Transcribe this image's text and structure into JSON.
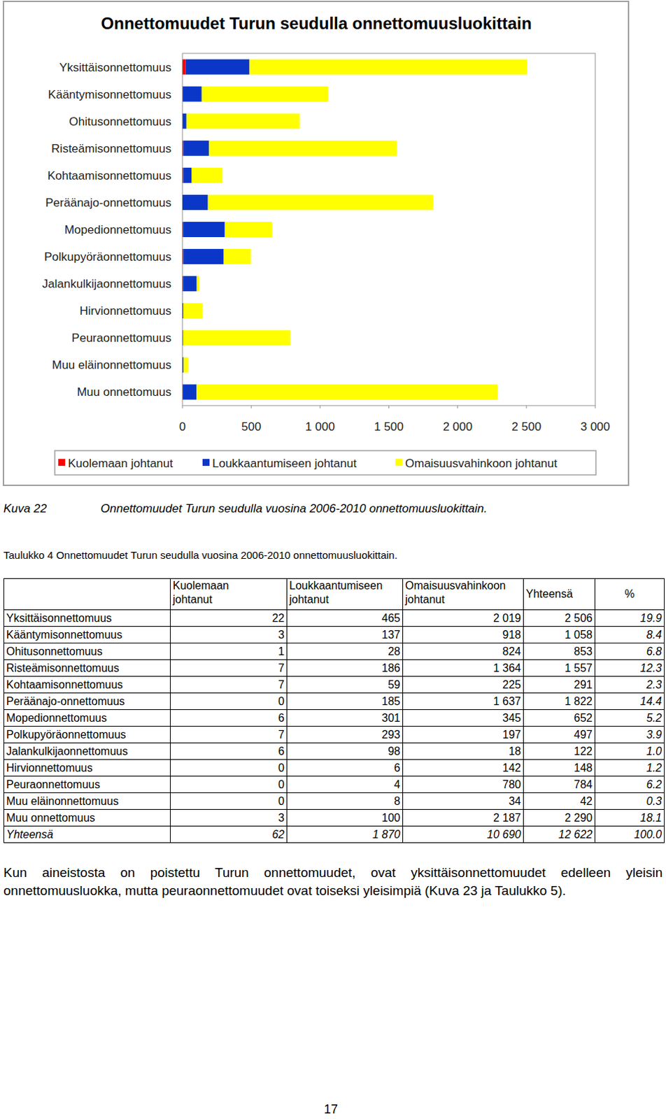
{
  "chart_data": {
    "type": "bar",
    "orientation": "horizontal",
    "stacked": true,
    "title": "Onnettomuudet Turun seudulla onnettomuusluokittain",
    "categories": [
      "Yksittäisonnettomuus",
      "Kääntymisonnettomuus",
      "Ohitusonnettomuus",
      "Risteämisonnettomuus",
      "Kohtaamisonnettomuus",
      "Peräänajo-onnettomuus",
      "Mopedionnettomuus",
      "Polkupyöräonnettomuus",
      "Jalankulkijaonnettomuus",
      "Hirvionnettomuus",
      "Peuraonnettomuus",
      "Muu eläinonnettomuus",
      "Muu onnettomuus"
    ],
    "series": [
      {
        "name": "Kuolemaan johtanut",
        "color": "#ff0000",
        "values": [
          22,
          3,
          1,
          7,
          7,
          0,
          6,
          7,
          6,
          0,
          0,
          0,
          3
        ]
      },
      {
        "name": "Loukkaantumiseen johtanut",
        "color": "#0a37c8",
        "values": [
          465,
          137,
          28,
          186,
          59,
          185,
          301,
          293,
          98,
          6,
          4,
          8,
          100
        ]
      },
      {
        "name": "Omaisuusvahinkoon johtanut",
        "color": "#ffff00",
        "values": [
          2019,
          918,
          824,
          1364,
          225,
          1637,
          345,
          197,
          18,
          142,
          780,
          34,
          2187
        ]
      }
    ],
    "xlim": [
      0,
      3000
    ],
    "xticks": [
      0,
      500,
      {
        "value": 1000,
        "label": "1 000"
      },
      {
        "value": 1500,
        "label": "1 500"
      },
      {
        "value": 2000,
        "label": "2 000"
      },
      {
        "value": 2500,
        "label": "2 500"
      },
      {
        "value": 3000,
        "label": "3 000"
      }
    ],
    "grid": false,
    "legend": "bottom"
  },
  "figure_caption": {
    "label": "Kuva 22",
    "text": "Onnettomuudet Turun seudulla vuosina 2006-2010 onnettomuusluokittain."
  },
  "table": {
    "caption": "Taulukko 4 Onnettomuudet Turun seudulla vuosina 2006-2010 onnettomuusluokittain.",
    "header": [
      "Kuolemaan johtanut",
      "Loukkaantumiseen johtanut",
      "Omaisuusvahinkoon johtanut",
      "Yhteensä",
      "%"
    ],
    "rows": [
      [
        "Yksittäisonnettomuus",
        "22",
        "465",
        "2 019",
        "2 506",
        "19.9"
      ],
      [
        "Kääntymisonnettomuus",
        "3",
        "137",
        "918",
        "1 058",
        "8.4"
      ],
      [
        "Ohitusonnettomuus",
        "1",
        "28",
        "824",
        "853",
        "6.8"
      ],
      [
        "Risteämisonnettomuus",
        "7",
        "186",
        "1 364",
        "1 557",
        "12.3"
      ],
      [
        "Kohtaamisonnettomuus",
        "7",
        "59",
        "225",
        "291",
        "2.3"
      ],
      [
        "Peräänajo-onnettomuus",
        "0",
        "185",
        "1 637",
        "1 822",
        "14.4"
      ],
      [
        "Mopedionnettomuus",
        "6",
        "301",
        "345",
        "652",
        "5.2"
      ],
      [
        "Polkupyöräonnettomuus",
        "7",
        "293",
        "197",
        "497",
        "3.9"
      ],
      [
        "Jalankulkijaonnettomuus",
        "6",
        "98",
        "18",
        "122",
        "1.0"
      ],
      [
        "Hirvionnettomuus",
        "0",
        "6",
        "142",
        "148",
        "1.2"
      ],
      [
        "Peuraonnettomuus",
        "0",
        "4",
        "780",
        "784",
        "6.2"
      ],
      [
        "Muu eläinonnettomuus",
        "0",
        "8",
        "34",
        "42",
        "0.3"
      ],
      [
        "Muu onnettomuus",
        "3",
        "100",
        "2 187",
        "2 290",
        "18.1"
      ],
      [
        "Yhteensä",
        "62",
        "1 870",
        "10 690",
        "12 622",
        "100.0"
      ]
    ]
  },
  "paragraph": "Kun aineistosta on poistettu Turun onnettomuudet, ovat yksittäisonnettomuudet edelleen yleisin onnettomuusluokka, mutta peuraonnettomuudet ovat toiseksi yleisimpiä (Kuva 23 ja Taulukko 5).",
  "page_number": "17"
}
